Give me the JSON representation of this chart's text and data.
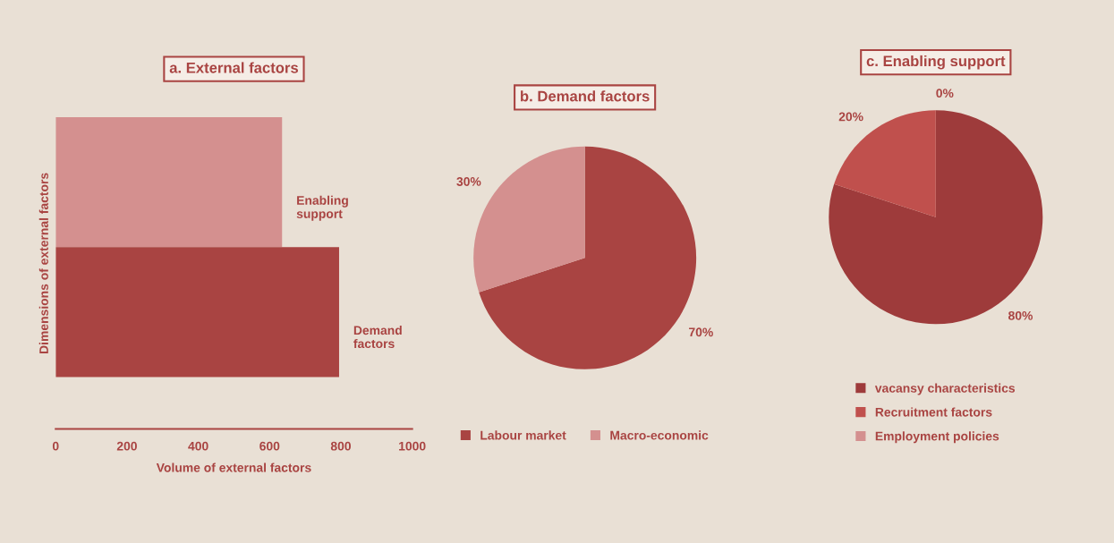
{
  "chart_data": [
    {
      "type": "bar",
      "orientation": "horizontal",
      "title": "a. External factors",
      "xlabel": "Volume of external factors",
      "ylabel": "Dimensions of external factors",
      "categories": [
        "Enabling support",
        "Demand factors"
      ],
      "values": [
        635,
        795
      ],
      "colors": [
        "#d4908f",
        "#a94442"
      ],
      "xlim": [
        0,
        1000
      ],
      "xticks": [
        0,
        200,
        400,
        600,
        800,
        1000
      ],
      "grid": false
    },
    {
      "type": "pie",
      "title": "b. Demand factors",
      "categories": [
        "Labour market",
        "Macro-economic"
      ],
      "values": [
        70,
        30
      ],
      "colors": [
        "#a94442",
        "#d4908f"
      ],
      "value_labels": [
        "70%",
        "30%"
      ],
      "legend": "bottom"
    },
    {
      "type": "pie",
      "title": "c. Enabling support",
      "categories": [
        "vacansy characteristics",
        "Recruitment factors",
        "Employment policies"
      ],
      "values": [
        80,
        20,
        0
      ],
      "colors": [
        "#9e3b3b",
        "#c0504d",
        "#d4908f"
      ],
      "value_labels": [
        "80%",
        "20%",
        "0%"
      ],
      "legend": "bottom"
    }
  ]
}
